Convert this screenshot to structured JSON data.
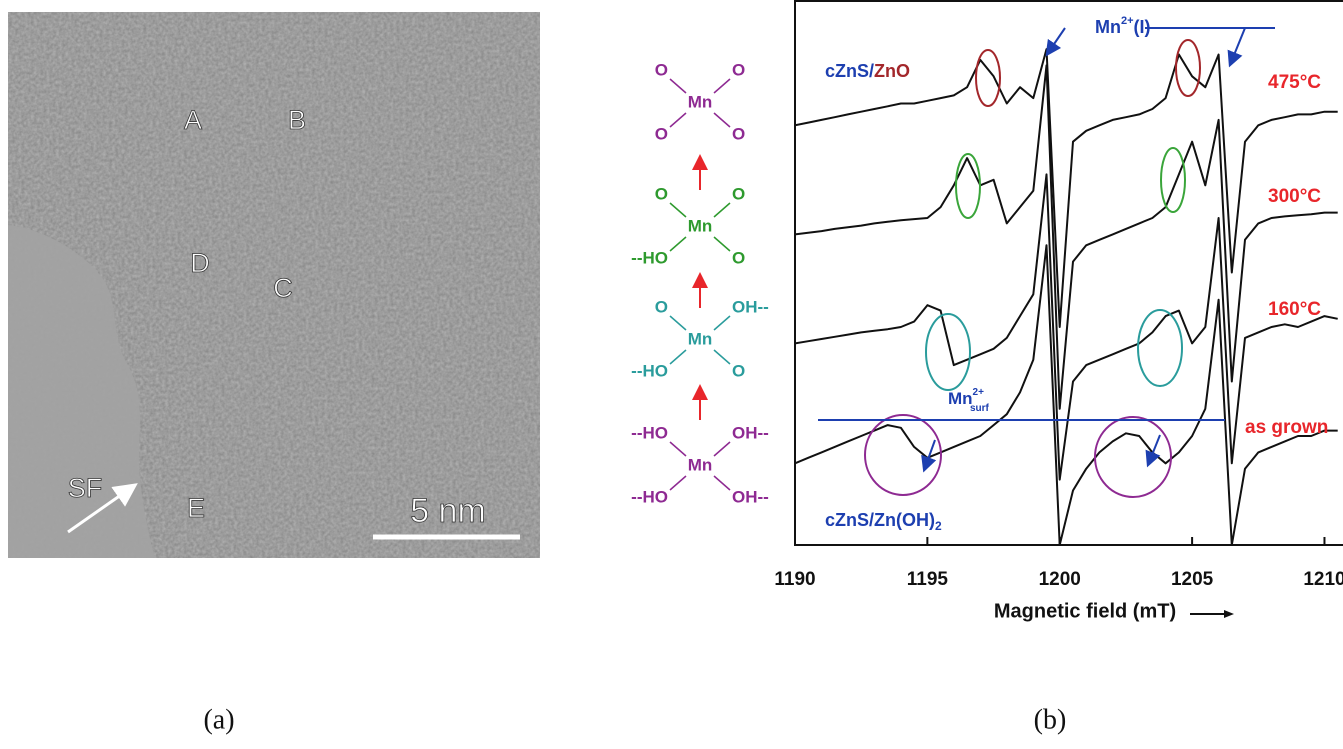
{
  "panel_a": {
    "labels": [
      "A",
      "B",
      "D",
      "C",
      "E"
    ],
    "sf": "SF",
    "scale": "5 nm"
  },
  "captions": [
    "(a)",
    "(b)"
  ],
  "structures": [
    {
      "center": "Mn",
      "top_left": "O",
      "top_right": "O",
      "bottom_left": "O",
      "bottom_right": "O",
      "color": "#8e2a92"
    },
    {
      "center": "Mn",
      "top_left": "O",
      "top_right": "O",
      "bottom_left": "--HO",
      "bottom_right": "O",
      "color": "#2e9a2e"
    },
    {
      "center": "Mn",
      "top_left": "O",
      "top_right": "OH--",
      "bottom_left": "--HO",
      "bottom_right": "O",
      "color": "#2a9c9c"
    },
    {
      "center": "Mn",
      "top_left": "--HO",
      "top_right": "OH--",
      "bottom_left": "--HO",
      "bottom_right": "OH--",
      "color": "#8e2a92"
    }
  ],
  "chart_data": {
    "type": "line",
    "xlabel": "Magnetic field (mT)",
    "annotations": {
      "top_sample": [
        "cZnS/",
        "ZnO"
      ],
      "mn_i": [
        "Mn",
        "2+",
        "(I)"
      ],
      "mn_surf": [
        "Mn",
        "2+",
        "surf"
      ],
      "bottom_sample": [
        "cZnS/Zn(OH)",
        "2"
      ]
    },
    "x": [
      1190,
      1190.5,
      1191,
      1191.5,
      1192,
      1192.5,
      1193,
      1193.5,
      1194,
      1194.5,
      1195,
      1195.5,
      1196,
      1196.5,
      1197,
      1197.5,
      1198,
      1198.5,
      1199,
      1199.5,
      1200,
      1200.5,
      1201,
      1201.5,
      1202,
      1202.5,
      1203,
      1203.5,
      1204,
      1204.5,
      1205,
      1205.5,
      1206,
      1206.5,
      1207,
      1207.5,
      1208,
      1208.5,
      1209,
      1209.5,
      1210,
      1210.5
    ],
    "series": [
      {
        "name": "475°C",
        "color": "#111111",
        "label_color": "#e8262b",
        "values": [
          77,
          77.5,
          78,
          78.5,
          79,
          79.5,
          80,
          80.5,
          81,
          81,
          81.5,
          82,
          82.5,
          84,
          89,
          86,
          81,
          84,
          82,
          91,
          40,
          74,
          76,
          77,
          78,
          78.5,
          79,
          80,
          82,
          90,
          86,
          84,
          90,
          50,
          74,
          77,
          78,
          78.5,
          79,
          79,
          79.5,
          79.5
        ]
      },
      {
        "name": "300°C",
        "color": "#111111",
        "label_color": "#e8262b",
        "values": [
          57,
          57.3,
          57.6,
          58,
          58.3,
          58.6,
          59,
          59.3,
          59.6,
          59.8,
          60,
          62,
          66,
          71,
          66,
          67,
          59,
          62,
          65,
          88,
          25,
          52,
          55,
          56,
          57,
          58,
          59,
          60,
          62,
          68,
          74,
          66,
          78,
          30,
          56,
          59,
          60,
          60.3,
          60.5,
          60.7,
          61,
          61
        ]
      },
      {
        "name": "160°C",
        "color": "#111111",
        "label_color": "#e8262b",
        "values": [
          37,
          37.4,
          37.8,
          38.2,
          38.6,
          39,
          39.3,
          39.6,
          40,
          41,
          44,
          43,
          33,
          34,
          35,
          36,
          38,
          42,
          46,
          68,
          12,
          30,
          33,
          34,
          35,
          36,
          37,
          39,
          42,
          43,
          37,
          40,
          60,
          15,
          38,
          39,
          40,
          40.5,
          40,
          41,
          42,
          41.5
        ]
      },
      {
        "name": "as grown",
        "color": "#111111",
        "label_color": "#e8262b",
        "values": [
          15,
          16,
          17,
          18,
          19,
          20,
          21,
          22,
          21.5,
          18,
          16,
          17,
          18,
          19,
          20,
          22,
          24,
          28,
          34,
          55,
          0,
          10,
          14,
          17,
          19,
          20.5,
          20,
          17,
          15,
          17,
          20,
          25,
          45,
          0,
          14,
          17,
          18,
          19,
          20,
          20,
          21,
          21
        ]
      }
    ],
    "xlim": [
      1190,
      1210.7
    ],
    "xticks": [
      1190,
      1195,
      1200,
      1205,
      1210
    ],
    "ylim": [
      0,
      100
    ]
  }
}
